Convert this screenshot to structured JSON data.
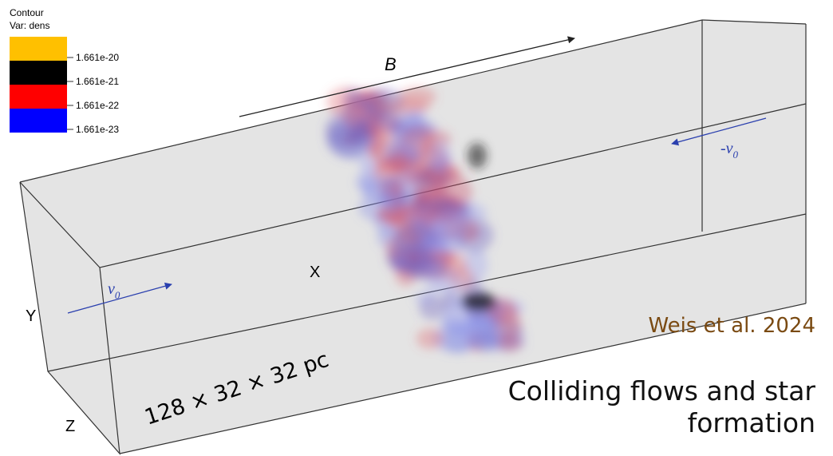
{
  "legend": {
    "title": "Contour",
    "variable": "Var: dens",
    "entries": [
      {
        "label": "1.661e-20",
        "color": "#ffc000"
      },
      {
        "label": "1.661e-21",
        "color": "#000000"
      },
      {
        "label": "1.661e-22",
        "color": "#ff0000"
      },
      {
        "label": "1.661e-23",
        "color": "#0000ff"
      }
    ]
  },
  "figure": {
    "field_label": "B",
    "axis_x": "X",
    "axis_y": "Y",
    "axis_z": "Z",
    "inflow_left": {
      "symbol": "v",
      "subscript": "0"
    },
    "inflow_right": {
      "symbol": "-v",
      "subscript": "0"
    },
    "box_size": "128 × 32 × 32 pc"
  },
  "citation": "Weis et al. 2024",
  "caption": "Colliding flows and star formation"
}
